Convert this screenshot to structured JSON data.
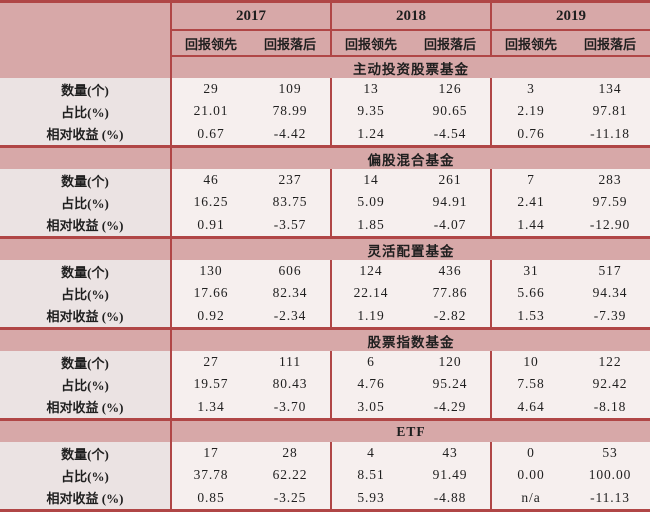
{
  "colors": {
    "pink": "#d7a8a8",
    "labelbg": "#ebe3e3",
    "cellbg": "#f6efee",
    "red": "#b04646",
    "text": "#1f1f1f"
  },
  "chart_data": {
    "type": "table",
    "header": {
      "years": [
        "2017",
        "2018",
        "2019"
      ],
      "sub_pair": [
        "回报领先",
        "回报落后"
      ]
    },
    "row_labels": [
      "数量(个)",
      "占比(%)",
      "相对收益 (%)"
    ],
    "sections": [
      {
        "title": "主动投资股票基金",
        "rows": [
          [
            "29",
            "109",
            "13",
            "126",
            "3",
            "134"
          ],
          [
            "21.01",
            "78.99",
            "9.35",
            "90.65",
            "2.19",
            "97.81"
          ],
          [
            "0.67",
            "-4.42",
            "1.24",
            "-4.54",
            "0.76",
            "-11.18"
          ]
        ]
      },
      {
        "title": "偏股混合基金",
        "rows": [
          [
            "46",
            "237",
            "14",
            "261",
            "7",
            "283"
          ],
          [
            "16.25",
            "83.75",
            "5.09",
            "94.91",
            "2.41",
            "97.59"
          ],
          [
            "0.91",
            "-3.57",
            "1.85",
            "-4.07",
            "1.44",
            "-12.90"
          ]
        ]
      },
      {
        "title": "灵活配置基金",
        "rows": [
          [
            "130",
            "606",
            "124",
            "436",
            "31",
            "517"
          ],
          [
            "17.66",
            "82.34",
            "22.14",
            "77.86",
            "5.66",
            "94.34"
          ],
          [
            "0.92",
            "-2.34",
            "1.19",
            "-2.82",
            "1.53",
            "-7.39"
          ]
        ]
      },
      {
        "title": "股票指数基金",
        "rows": [
          [
            "27",
            "111",
            "6",
            "120",
            "10",
            "122"
          ],
          [
            "19.57",
            "80.43",
            "4.76",
            "95.24",
            "7.58",
            "92.42"
          ],
          [
            "1.34",
            "-3.70",
            "3.05",
            "-4.29",
            "4.64",
            "-8.18"
          ]
        ]
      },
      {
        "title": "ETF",
        "rows": [
          [
            "17",
            "28",
            "4",
            "43",
            "0",
            "53"
          ],
          [
            "37.78",
            "62.22",
            "8.51",
            "91.49",
            "0.00",
            "100.00"
          ],
          [
            "0.85",
            "-3.25",
            "5.93",
            "-4.88",
            "n/a",
            "-11.13"
          ]
        ]
      }
    ]
  }
}
